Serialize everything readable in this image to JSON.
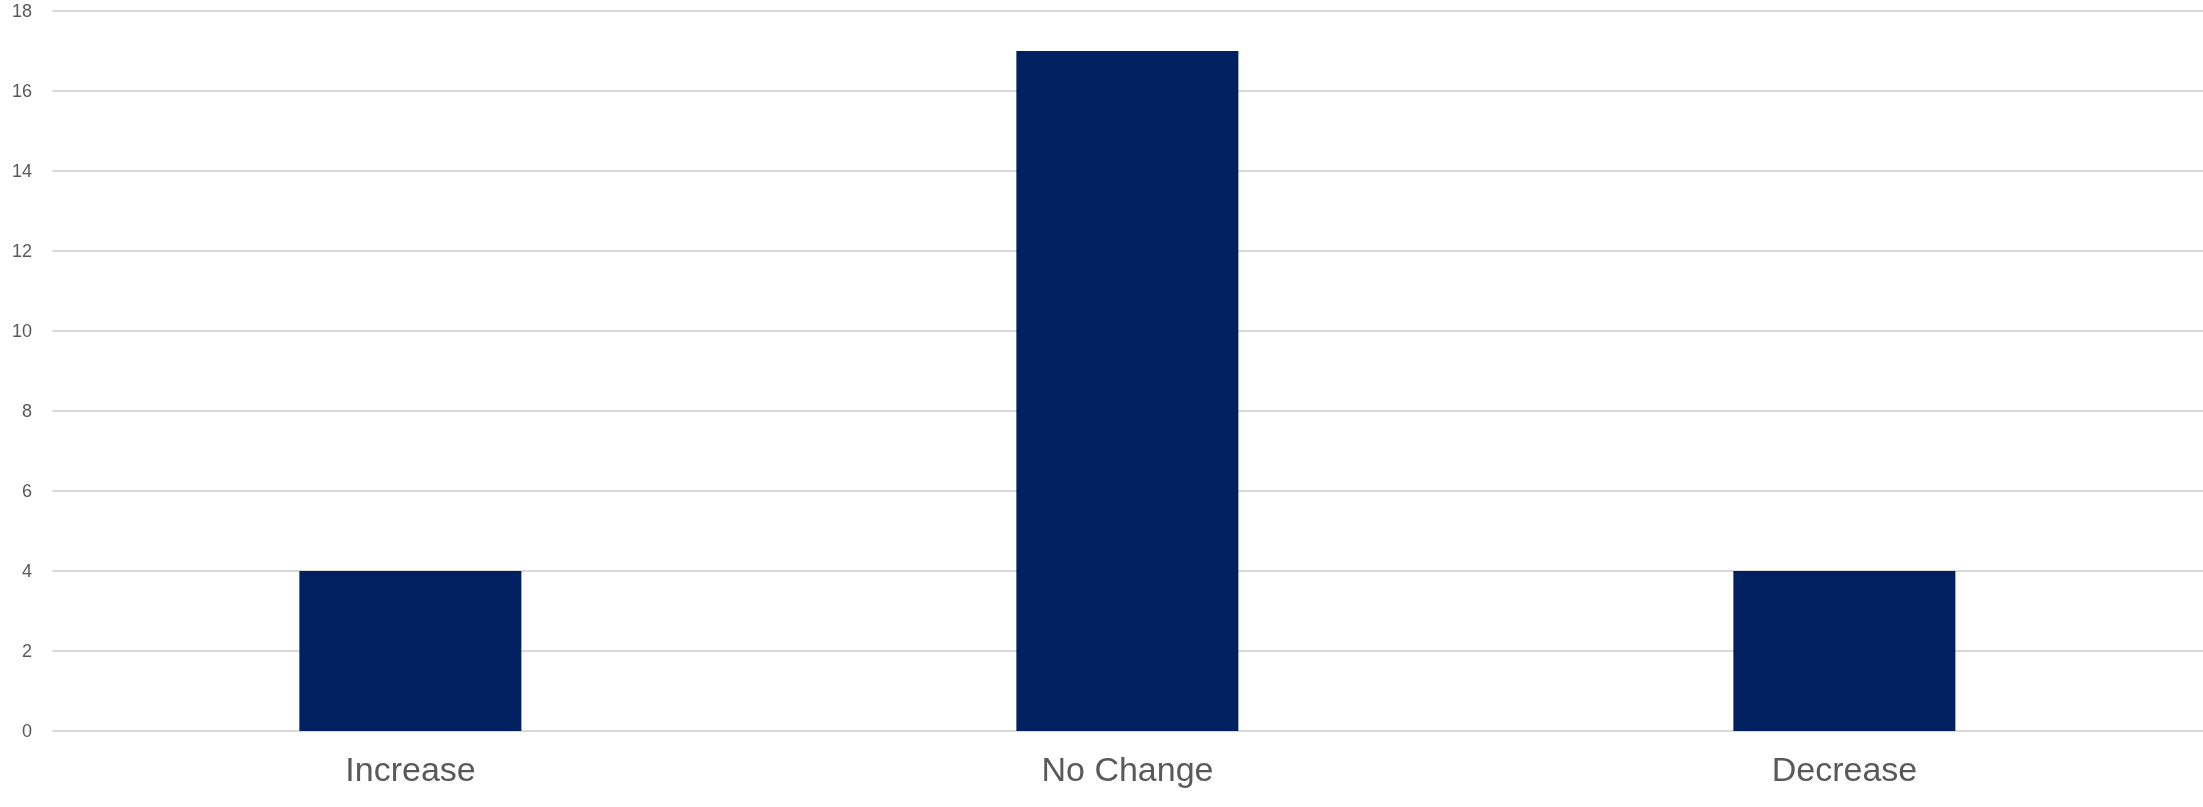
{
  "chart_data": {
    "type": "bar",
    "categories": [
      "Increase",
      "No Change",
      "Decrease"
    ],
    "values": [
      4,
      17,
      4
    ],
    "color": "#002060",
    "ylim": [
      0,
      18
    ],
    "yticks": [
      0,
      2,
      4,
      6,
      8,
      10,
      12,
      14,
      16,
      18
    ],
    "grid": "y"
  }
}
